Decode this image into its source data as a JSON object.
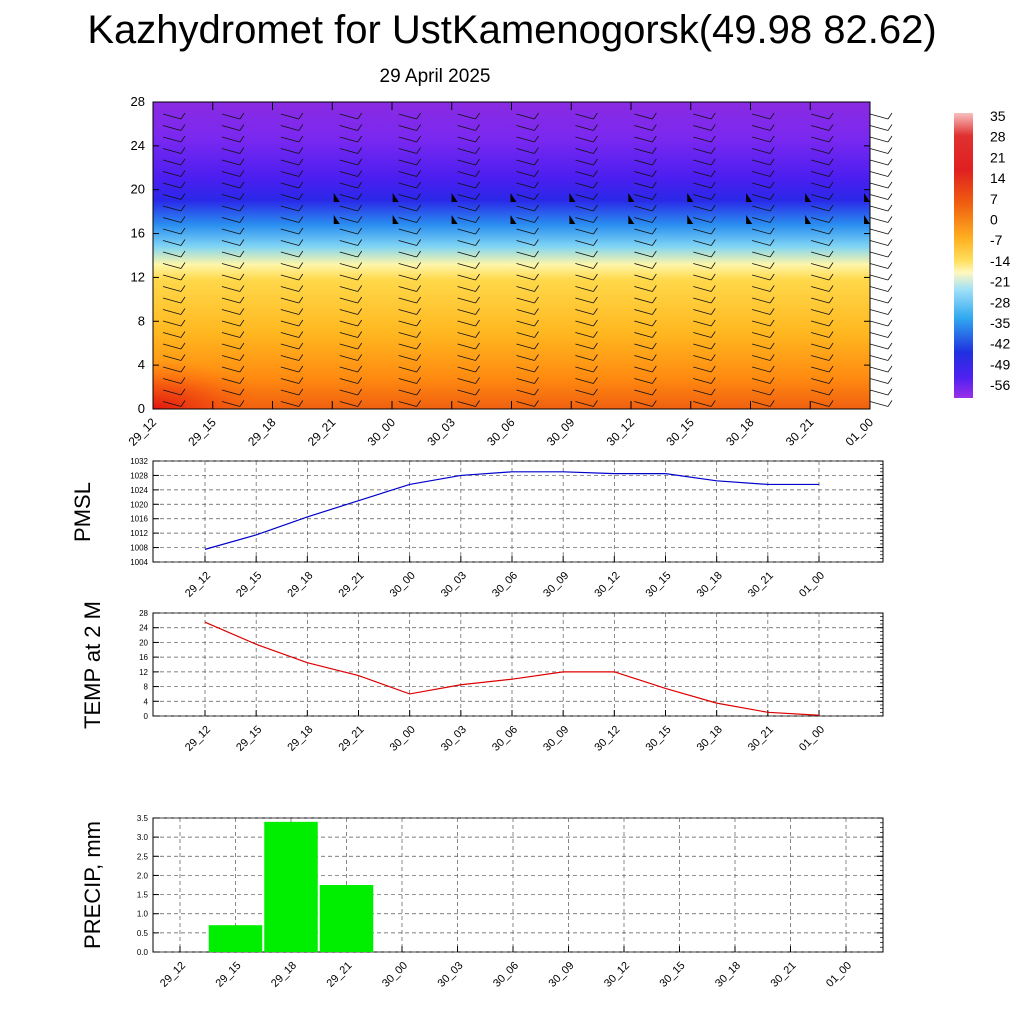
{
  "header": {
    "title": "Kazhydromet for UstKamenogorsk(49.98 82.62)",
    "date": "29 April 2025"
  },
  "colors": {
    "pmsl_line": "#0000cc",
    "temp_line": "#dd0000",
    "precip_bar": "#00ee00",
    "grid": "#555555"
  },
  "chart_data": [
    {
      "type": "heatmap",
      "title": "",
      "xlabel": "",
      "ylabel": "",
      "categories": [
        "29_12",
        "29_15",
        "29_18",
        "29_21",
        "30_00",
        "30_03",
        "30_06",
        "30_09",
        "30_12",
        "30_15",
        "30_18",
        "30_21",
        "01_00"
      ],
      "y_ticks": [
        0,
        4,
        8,
        12,
        16,
        20,
        24,
        28
      ],
      "ylim": [
        0,
        28
      ],
      "colorbar_labels": [
        "35",
        "28",
        "21",
        "14",
        "7",
        "0",
        "-7",
        "-14",
        "-21",
        "-28",
        "-35",
        "-42",
        "-49",
        "-56"
      ],
      "wind_barbs": true
    },
    {
      "type": "line",
      "ylabel": "PMSL",
      "categories": [
        "29_12",
        "29_15",
        "29_18",
        "29_21",
        "30_00",
        "30_03",
        "30_06",
        "30_09",
        "30_12",
        "30_15",
        "30_18",
        "30_21",
        "01_00"
      ],
      "values": [
        1007.5,
        1011.5,
        1016.5,
        1021,
        1025.5,
        1028,
        1029,
        1029,
        1028.5,
        1028.5,
        1026.5,
        1025.5,
        1025.5
      ],
      "y_ticks": [
        1004,
        1008,
        1012,
        1016,
        1020,
        1024,
        1028,
        1032
      ],
      "ylim": [
        1004,
        1032
      ],
      "grid": true
    },
    {
      "type": "line",
      "ylabel": "TEMP at 2 M",
      "categories": [
        "29_12",
        "29_15",
        "29_18",
        "29_21",
        "30_00",
        "30_03",
        "30_06",
        "30_09",
        "30_12",
        "30_15",
        "30_18",
        "30_21",
        "01_00"
      ],
      "values": [
        25.5,
        19.5,
        14.5,
        11,
        6,
        8.5,
        10,
        12,
        12,
        7.5,
        3.5,
        1,
        0.2
      ],
      "y_ticks": [
        0,
        4,
        8,
        12,
        16,
        20,
        24,
        28
      ],
      "ylim": [
        0,
        28
      ],
      "grid": true
    },
    {
      "type": "bar",
      "ylabel": "PRECIP, mm",
      "categories": [
        "29_12",
        "29_15",
        "29_18",
        "29_21",
        "30_00",
        "30_03",
        "30_06",
        "30_09",
        "30_12",
        "30_15",
        "30_18",
        "30_21",
        "01_00"
      ],
      "values": [
        0,
        0.7,
        3.4,
        1.75,
        0,
        0,
        0,
        0,
        0,
        0,
        0,
        0,
        0
      ],
      "y_ticks": [
        "0.0",
        "0.5",
        "1.0",
        "1.5",
        "2.0",
        "2.5",
        "3.0",
        "3.5"
      ],
      "ylim": [
        0,
        3.5
      ],
      "grid": true
    }
  ]
}
